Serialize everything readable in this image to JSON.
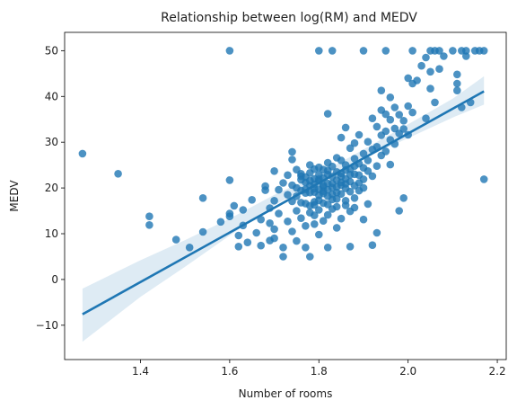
{
  "chart_data": {
    "type": "scatter",
    "title": "Relationship between log(RM) and MEDV",
    "xlabel": "Number of rooms",
    "ylabel": "MEDV",
    "xlim": [
      1.23,
      2.22
    ],
    "ylim": [
      -17.5,
      54.0
    ],
    "xticks": [
      1.4,
      1.6,
      1.8,
      2.0,
      2.2
    ],
    "xtick_labels": [
      "1.4",
      "1.6",
      "1.8",
      "2.0",
      "2.2"
    ],
    "yticks": [
      -10,
      0,
      10,
      20,
      30,
      40,
      50
    ],
    "ytick_labels": [
      "−10",
      "0",
      "10",
      "20",
      "30",
      "40",
      "50"
    ],
    "grid": false,
    "colors": {
      "points": "#1f77b4",
      "line": "#1f77b4",
      "band": "#1f77b4"
    },
    "regression": {
      "x": [
        1.27,
        2.17
      ],
      "y": [
        -7.6,
        41.1
      ],
      "ci": [
        {
          "x": 1.27,
          "low": -13.6,
          "high": -2.0
        },
        {
          "x": 1.4,
          "low": -3.8,
          "high": 4.2
        },
        {
          "x": 1.5,
          "low": 2.8,
          "high": 8.6
        },
        {
          "x": 1.6,
          "low": 9.6,
          "high": 13.3
        },
        {
          "x": 1.7,
          "low": 16.2,
          "high": 18.5
        },
        {
          "x": 1.8,
          "low": 21.6,
          "high": 23.0
        },
        {
          "x": 1.9,
          "low": 26.4,
          "high": 28.4
        },
        {
          "x": 2.0,
          "low": 30.9,
          "high": 33.9
        },
        {
          "x": 2.1,
          "low": 35.4,
          "high": 39.5
        },
        {
          "x": 2.17,
          "low": 38.2,
          "high": 44.4
        }
      ]
    },
    "points": [
      [
        1.27,
        27.5
      ],
      [
        1.35,
        23.1
      ],
      [
        1.42,
        13.8
      ],
      [
        1.42,
        11.9
      ],
      [
        1.48,
        8.7
      ],
      [
        1.51,
        7.0
      ],
      [
        1.54,
        17.8
      ],
      [
        1.54,
        10.4
      ],
      [
        1.58,
        12.6
      ],
      [
        1.6,
        50.0
      ],
      [
        1.6,
        21.7
      ],
      [
        1.6,
        14.4
      ],
      [
        1.6,
        13.8
      ],
      [
        1.61,
        16.1
      ],
      [
        1.62,
        7.2
      ],
      [
        1.62,
        9.6
      ],
      [
        1.63,
        15.2
      ],
      [
        1.63,
        11.8
      ],
      [
        1.64,
        8.1
      ],
      [
        1.65,
        17.4
      ],
      [
        1.66,
        10.2
      ],
      [
        1.67,
        13.1
      ],
      [
        1.67,
        7.4
      ],
      [
        1.68,
        19.5
      ],
      [
        1.68,
        20.4
      ],
      [
        1.69,
        15.6
      ],
      [
        1.69,
        12.3
      ],
      [
        1.69,
        8.5
      ],
      [
        1.7,
        23.7
      ],
      [
        1.7,
        17.2
      ],
      [
        1.7,
        11.0
      ],
      [
        1.7,
        9.0
      ],
      [
        1.71,
        19.6
      ],
      [
        1.71,
        14.4
      ],
      [
        1.72,
        7.0
      ],
      [
        1.72,
        5.0
      ],
      [
        1.72,
        21.1
      ],
      [
        1.73,
        22.8
      ],
      [
        1.73,
        18.5
      ],
      [
        1.73,
        12.7
      ],
      [
        1.74,
        27.9
      ],
      [
        1.74,
        26.2
      ],
      [
        1.74,
        17.1
      ],
      [
        1.74,
        10.5
      ],
      [
        1.75,
        24.0
      ],
      [
        1.75,
        20.0
      ],
      [
        1.75,
        15.0
      ],
      [
        1.75,
        8.4
      ],
      [
        1.76,
        23.1
      ],
      [
        1.76,
        19.4
      ],
      [
        1.76,
        13.4
      ],
      [
        1.76,
        22.6
      ],
      [
        1.77,
        21.2
      ],
      [
        1.77,
        16.6
      ],
      [
        1.77,
        11.7
      ],
      [
        1.77,
        7.0
      ],
      [
        1.77,
        18.9
      ],
      [
        1.78,
        20.5
      ],
      [
        1.78,
        14.6
      ],
      [
        1.78,
        5.0
      ],
      [
        1.78,
        23.3
      ],
      [
        1.78,
        25.0
      ],
      [
        1.79,
        19.8
      ],
      [
        1.79,
        17.0
      ],
      [
        1.79,
        12.1
      ],
      [
        1.79,
        22.0
      ],
      [
        1.79,
        20.8
      ],
      [
        1.8,
        18.4
      ],
      [
        1.8,
        21.5
      ],
      [
        1.8,
        15.2
      ],
      [
        1.8,
        9.8
      ],
      [
        1.8,
        24.5
      ],
      [
        1.8,
        50.0
      ],
      [
        1.81,
        19.3
      ],
      [
        1.81,
        22.2
      ],
      [
        1.81,
        16.7
      ],
      [
        1.81,
        12.8
      ],
      [
        1.81,
        20.3
      ],
      [
        1.82,
        23.8
      ],
      [
        1.82,
        18.2
      ],
      [
        1.82,
        21.0
      ],
      [
        1.82,
        14.1
      ],
      [
        1.82,
        7.0
      ],
      [
        1.82,
        36.2
      ],
      [
        1.83,
        20.1
      ],
      [
        1.83,
        22.5
      ],
      [
        1.83,
        17.5
      ],
      [
        1.83,
        24.7
      ],
      [
        1.83,
        50.0
      ],
      [
        1.84,
        19.0
      ],
      [
        1.84,
        21.7
      ],
      [
        1.84,
        15.9
      ],
      [
        1.84,
        26.6
      ],
      [
        1.84,
        11.3
      ],
      [
        1.85,
        20.6
      ],
      [
        1.85,
        23.2
      ],
      [
        1.85,
        18.7
      ],
      [
        1.85,
        13.3
      ],
      [
        1.85,
        31.0
      ],
      [
        1.86,
        22.0
      ],
      [
        1.86,
        19.9
      ],
      [
        1.86,
        25.0
      ],
      [
        1.86,
        16.2
      ],
      [
        1.86,
        33.2
      ],
      [
        1.87,
        21.4
      ],
      [
        1.87,
        24.1
      ],
      [
        1.87,
        28.7
      ],
      [
        1.87,
        14.9
      ],
      [
        1.87,
        7.2
      ],
      [
        1.88,
        23.0
      ],
      [
        1.88,
        20.5
      ],
      [
        1.88,
        26.4
      ],
      [
        1.88,
        17.8
      ],
      [
        1.88,
        29.8
      ],
      [
        1.89,
        22.8
      ],
      [
        1.89,
        25.3
      ],
      [
        1.89,
        31.6
      ],
      [
        1.89,
        19.4
      ],
      [
        1.9,
        24.4
      ],
      [
        1.9,
        27.5
      ],
      [
        1.9,
        21.9
      ],
      [
        1.9,
        13.1
      ],
      [
        1.9,
        50.0
      ],
      [
        1.91,
        23.7
      ],
      [
        1.91,
        30.1
      ],
      [
        1.91,
        26.0
      ],
      [
        1.91,
        16.5
      ],
      [
        1.92,
        28.4
      ],
      [
        1.92,
        22.6
      ],
      [
        1.92,
        35.2
      ],
      [
        1.92,
        7.5
      ],
      [
        1.93,
        29.0
      ],
      [
        1.93,
        33.4
      ],
      [
        1.93,
        24.8
      ],
      [
        1.93,
        10.2
      ],
      [
        1.94,
        31.5
      ],
      [
        1.94,
        37.0
      ],
      [
        1.94,
        27.1
      ],
      [
        1.94,
        41.3
      ],
      [
        1.95,
        32.4
      ],
      [
        1.95,
        36.1
      ],
      [
        1.95,
        28.0
      ],
      [
        1.95,
        50.0
      ],
      [
        1.96,
        30.5
      ],
      [
        1.96,
        34.9
      ],
      [
        1.96,
        39.8
      ],
      [
        1.96,
        25.1
      ],
      [
        1.97,
        33.0
      ],
      [
        1.97,
        37.6
      ],
      [
        1.97,
        29.6
      ],
      [
        1.98,
        31.9
      ],
      [
        1.98,
        36.0
      ],
      [
        1.98,
        15.0
      ],
      [
        1.99,
        32.9
      ],
      [
        1.99,
        34.7
      ],
      [
        1.99,
        17.8
      ],
      [
        2.0,
        31.6
      ],
      [
        2.0,
        37.9
      ],
      [
        2.0,
        44.0
      ],
      [
        2.01,
        42.8
      ],
      [
        2.01,
        36.5
      ],
      [
        2.01,
        50.0
      ],
      [
        2.02,
        43.5
      ],
      [
        2.03,
        46.7
      ],
      [
        2.04,
        35.2
      ],
      [
        2.04,
        48.5
      ],
      [
        2.05,
        41.7
      ],
      [
        2.05,
        50.0
      ],
      [
        2.05,
        45.4
      ],
      [
        2.06,
        50.0
      ],
      [
        2.06,
        38.7
      ],
      [
        2.07,
        50.0
      ],
      [
        2.07,
        46.0
      ],
      [
        2.08,
        48.8
      ],
      [
        2.1,
        50.0
      ],
      [
        2.11,
        44.8
      ],
      [
        2.11,
        42.8
      ],
      [
        2.11,
        41.3
      ],
      [
        2.12,
        50.0
      ],
      [
        2.12,
        37.6
      ],
      [
        2.13,
        48.8
      ],
      [
        2.13,
        50.0
      ],
      [
        2.14,
        38.7
      ],
      [
        2.15,
        50.0
      ],
      [
        2.16,
        50.0
      ],
      [
        2.17,
        50.0
      ],
      [
        2.17,
        21.9
      ],
      [
        1.74,
        20.6
      ],
      [
        1.75,
        18.2
      ],
      [
        1.76,
        16.8
      ],
      [
        1.77,
        22.4
      ],
      [
        1.78,
        19.0
      ],
      [
        1.78,
        16.1
      ],
      [
        1.79,
        24.1
      ],
      [
        1.79,
        14.0
      ],
      [
        1.8,
        17.3
      ],
      [
        1.8,
        19.7
      ],
      [
        1.8,
        22.9
      ],
      [
        1.81,
        18.8
      ],
      [
        1.81,
        24.0
      ],
      [
        1.82,
        16.4
      ],
      [
        1.82,
        19.6
      ],
      [
        1.82,
        25.5
      ],
      [
        1.83,
        18.6
      ],
      [
        1.83,
        15.4
      ],
      [
        1.84,
        23.5
      ],
      [
        1.84,
        17.6
      ],
      [
        1.85,
        21.2
      ],
      [
        1.85,
        26.0
      ],
      [
        1.86,
        20.9
      ],
      [
        1.86,
        17.2
      ],
      [
        1.87,
        19.2
      ],
      [
        1.87,
        22.9
      ],
      [
        1.88,
        24.8
      ],
      [
        1.88,
        15.7
      ],
      [
        1.89,
        21.1
      ],
      [
        1.9,
        20.0
      ],
      [
        1.83,
        21.0
      ],
      [
        1.82,
        22.9
      ],
      [
        1.81,
        20.6
      ],
      [
        1.8,
        21.9
      ],
      [
        1.79,
        19.1
      ],
      [
        1.84,
        20.2
      ],
      [
        1.85,
        22.5
      ],
      [
        1.86,
        23.9
      ],
      [
        1.76,
        21.8
      ],
      [
        1.77,
        19.7
      ],
      [
        1.78,
        21.6
      ],
      [
        1.79,
        16.3
      ]
    ]
  }
}
